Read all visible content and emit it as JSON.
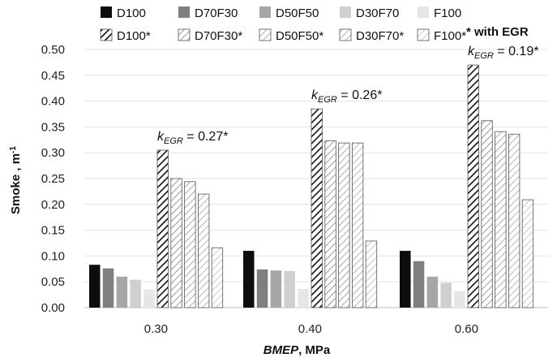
{
  "chart_data": {
    "type": "bar",
    "title": "",
    "xlabel_italic": "BMEP",
    "xlabel_rest": ", MPa",
    "ylabel": "Smoke , m",
    "ylabel_sup": "-1",
    "ylim": [
      0,
      0.5
    ],
    "ytick_step": 0.05,
    "categories": [
      "0.30",
      "0.40",
      "0.60"
    ],
    "series": [
      {
        "name": "D100",
        "values": [
          0.083,
          0.11,
          0.11
        ],
        "fill": "#0d0d0d",
        "hatch": false,
        "hatch_color": ""
      },
      {
        "name": "D70F30",
        "values": [
          0.076,
          0.074,
          0.09
        ],
        "fill": "#7f7f7f",
        "hatch": false,
        "hatch_color": ""
      },
      {
        "name": "D50F50",
        "values": [
          0.06,
          0.072,
          0.06
        ],
        "fill": "#a6a6a6",
        "hatch": false,
        "hatch_color": ""
      },
      {
        "name": "D30F70",
        "values": [
          0.054,
          0.071,
          0.048
        ],
        "fill": "#cfcfcf",
        "hatch": false,
        "hatch_color": ""
      },
      {
        "name": "F100",
        "values": [
          0.035,
          0.036,
          0.032
        ],
        "fill": "#e6e6e6",
        "hatch": false,
        "hatch_color": ""
      },
      {
        "name": "D100*",
        "values": [
          0.305,
          0.385,
          0.47
        ],
        "fill": "#ffffff",
        "hatch": true,
        "hatch_color": "#111111"
      },
      {
        "name": "D70F30*",
        "values": [
          0.25,
          0.323,
          0.362
        ],
        "fill": "#ffffff",
        "hatch": true,
        "hatch_color": "#6f6f6f"
      },
      {
        "name": "D50F50*",
        "values": [
          0.244,
          0.319,
          0.341
        ],
        "fill": "#ffffff",
        "hatch": true,
        "hatch_color": "#888888"
      },
      {
        "name": "D30F70*",
        "values": [
          0.22,
          0.319,
          0.336
        ],
        "fill": "#ffffff",
        "hatch": true,
        "hatch_color": "#9a9a9a"
      },
      {
        "name": "F100*",
        "values": [
          0.116,
          0.129,
          0.209
        ],
        "fill": "#ffffff",
        "hatch": true,
        "hatch_color": "#b0b0b0"
      }
    ],
    "annotations": [
      {
        "k": "k",
        "sub": "EGR",
        "value": " = 0.27*",
        "category": "0.30"
      },
      {
        "k": "k",
        "sub": "EGR",
        "value": " = 0.26*",
        "category": "0.40"
      },
      {
        "k": "k",
        "sub": "EGR",
        "value": " = 0.19*",
        "category": "0.60"
      }
    ],
    "note": "* with EGR",
    "legend_position": "top"
  }
}
